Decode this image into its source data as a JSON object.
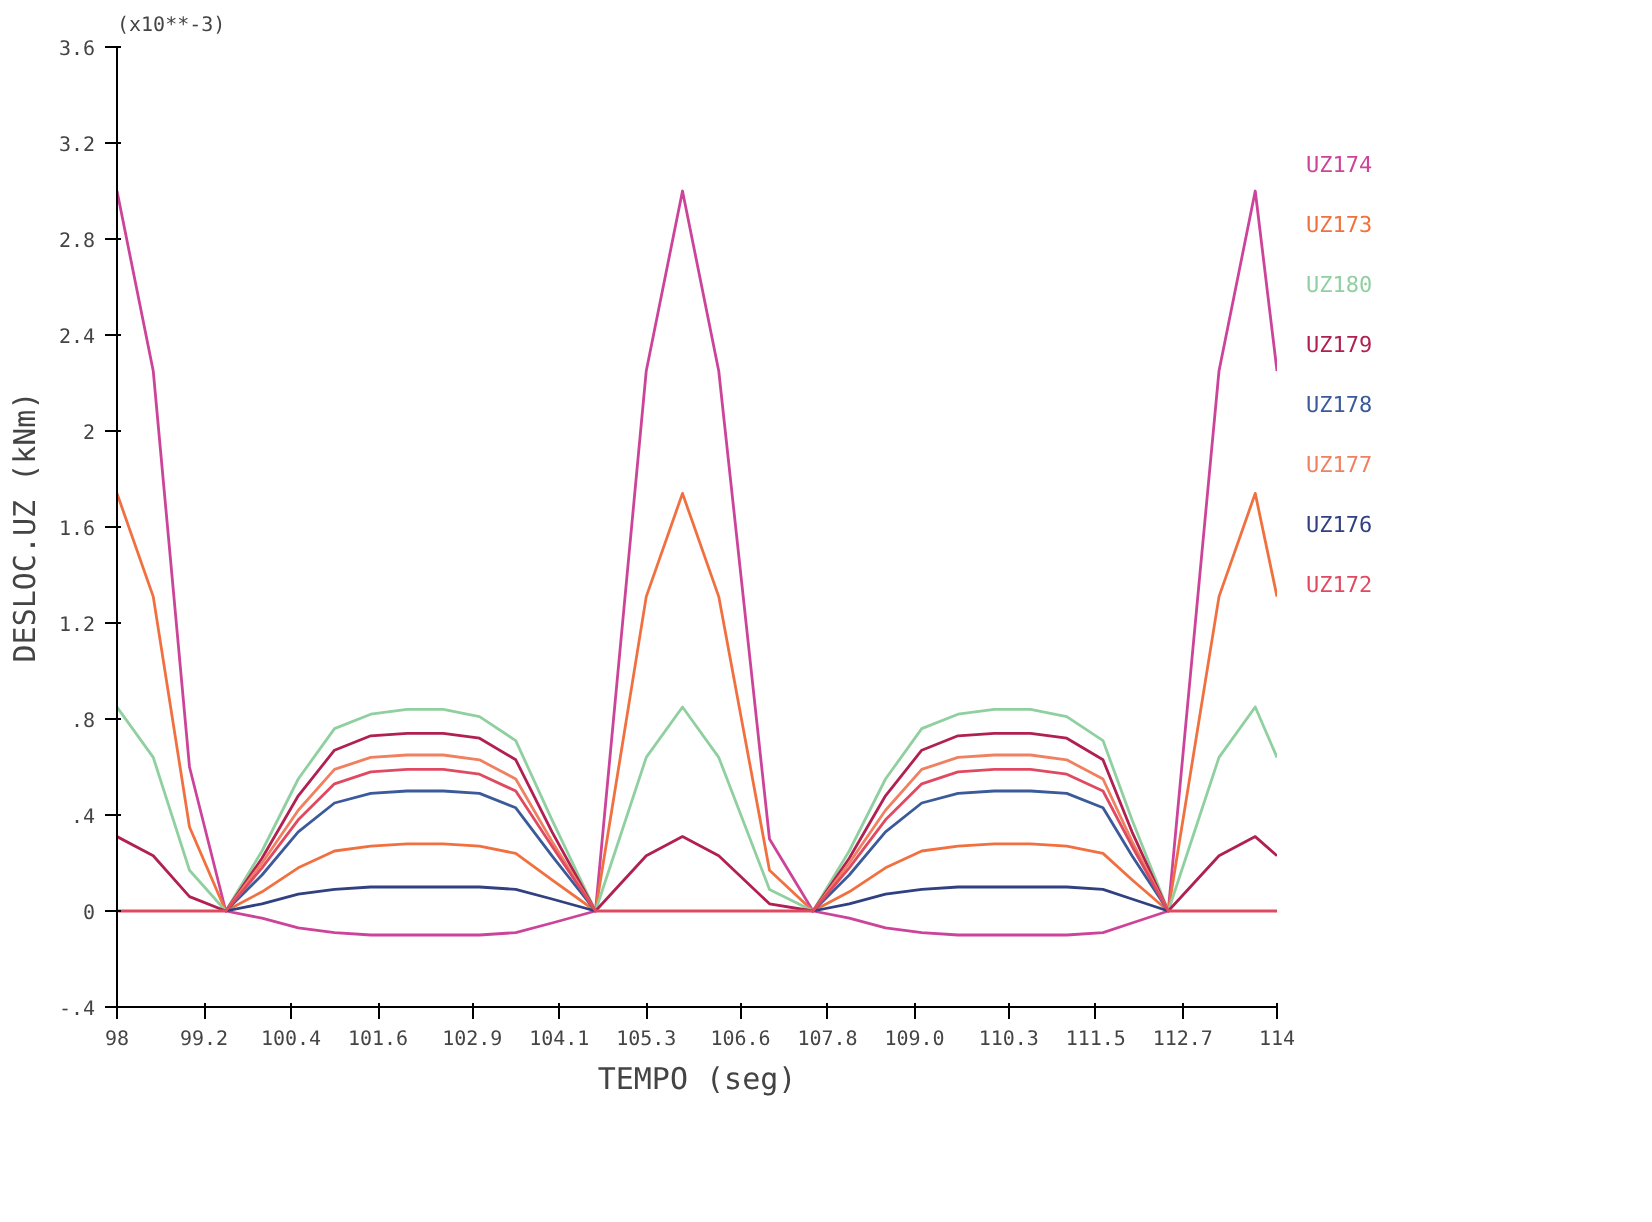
{
  "chart_data": {
    "type": "line",
    "xlabel": "TEMPO (seg)",
    "ylabel": "DESLOC.UZ (kNm)",
    "annotations": [
      "(x10**-3)"
    ],
    "x": [
      98,
      98.5,
      99,
      99.5,
      100,
      100.5,
      101,
      101.5,
      102,
      102.5,
      103,
      103.5,
      104,
      104.6,
      105.3,
      105.8,
      106.3,
      107,
      107.6,
      108.1,
      108.6,
      109.1,
      109.6,
      110.1,
      110.6,
      111.1,
      111.6,
      112,
      112.5,
      113.2,
      113.7,
      114
    ],
    "xlim": [
      98,
      114
    ],
    "xticks": [
      98,
      99.2,
      100.4,
      101.6,
      102.9,
      104.1,
      105.3,
      106.6,
      107.8,
      {
        "value": 109,
        "label": "109.0"
      },
      110.3,
      111.5,
      112.7,
      114
    ],
    "ylim": [
      -0.4,
      3.6
    ],
    "yticks": [
      {
        "value": -0.4,
        "label": "-.4"
      },
      0,
      {
        "value": 0.4,
        "label": ".4"
      },
      {
        "value": 0.8,
        "label": ".8"
      },
      1.2,
      1.6,
      2,
      2.4,
      2.8,
      3.2,
      3.6
    ],
    "grid": false,
    "marker": "none",
    "line_style": "solid",
    "series": [
      {
        "name": "UZ174",
        "color": "#cc4499",
        "values": [
          3.0,
          2.25,
          0.6,
          0,
          -0.03,
          -0.07,
          -0.09,
          -0.1,
          -0.1,
          -0.1,
          -0.1,
          -0.09,
          -0.05,
          0,
          2.25,
          3.0,
          2.25,
          0.3,
          0,
          -0.03,
          -0.07,
          -0.09,
          -0.1,
          -0.1,
          -0.1,
          -0.1,
          -0.09,
          -0.05,
          0,
          2.25,
          3.0,
          2.25
        ]
      },
      {
        "name": "UZ173",
        "color": "#f07040",
        "values": [
          1.74,
          1.31,
          0.35,
          0,
          0.08,
          0.18,
          0.25,
          0.27,
          0.28,
          0.28,
          0.27,
          0.24,
          0.13,
          0,
          1.31,
          1.74,
          1.31,
          0.17,
          0,
          0.08,
          0.18,
          0.25,
          0.27,
          0.28,
          0.28,
          0.27,
          0.24,
          0.13,
          0,
          1.31,
          1.74,
          1.31
        ]
      },
      {
        "name": "UZ180",
        "color": "#90d0a0",
        "values": [
          0.85,
          0.64,
          0.17,
          0,
          0.25,
          0.55,
          0.76,
          0.82,
          0.84,
          0.84,
          0.81,
          0.71,
          0.38,
          0,
          0.64,
          0.85,
          0.64,
          0.09,
          0,
          0.25,
          0.55,
          0.76,
          0.82,
          0.84,
          0.84,
          0.81,
          0.71,
          0.38,
          0,
          0.64,
          0.85,
          0.64
        ]
      },
      {
        "name": "UZ179",
        "color": "#b02050",
        "values": [
          0.31,
          0.23,
          0.06,
          0,
          0.22,
          0.48,
          0.67,
          0.73,
          0.74,
          0.74,
          0.72,
          0.63,
          0.33,
          0,
          0.23,
          0.31,
          0.23,
          0.03,
          0,
          0.22,
          0.48,
          0.67,
          0.73,
          0.74,
          0.74,
          0.72,
          0.63,
          0.33,
          0,
          0.23,
          0.31,
          0.23
        ]
      },
      {
        "name": "UZ178",
        "color": "#3a5a9a",
        "values": [
          null,
          null,
          null,
          0,
          0.15,
          0.33,
          0.45,
          0.49,
          0.5,
          0.5,
          0.49,
          0.43,
          0.23,
          0,
          null,
          null,
          null,
          null,
          0,
          0.15,
          0.33,
          0.45,
          0.49,
          0.5,
          0.5,
          0.49,
          0.43,
          0.23,
          0,
          null,
          null,
          null
        ]
      },
      {
        "name": "UZ177",
        "color": "#f08060",
        "values": [
          null,
          null,
          null,
          0,
          0.2,
          0.42,
          0.59,
          0.64,
          0.65,
          0.65,
          0.63,
          0.55,
          0.29,
          0,
          null,
          null,
          null,
          null,
          0,
          0.2,
          0.42,
          0.59,
          0.64,
          0.65,
          0.65,
          0.63,
          0.55,
          0.29,
          0,
          null,
          null,
          null
        ]
      },
      {
        "name": "UZ176",
        "color": "#304080",
        "values": [
          null,
          null,
          null,
          0,
          0.03,
          0.07,
          0.09,
          0.1,
          0.1,
          0.1,
          0.1,
          0.09,
          0.05,
          0,
          null,
          null,
          null,
          null,
          0,
          0.03,
          0.07,
          0.09,
          0.1,
          0.1,
          0.1,
          0.1,
          0.09,
          0.05,
          0,
          null,
          null,
          null
        ]
      },
      {
        "name": "UZ172",
        "color": "#e04a60",
        "values": [
          0,
          0,
          0,
          0,
          0.18,
          0.38,
          0.53,
          0.58,
          0.59,
          0.59,
          0.57,
          0.5,
          0.27,
          0,
          0,
          0,
          0,
          0,
          0,
          0.18,
          0.38,
          0.53,
          0.58,
          0.59,
          0.59,
          0.57,
          0.5,
          0.27,
          0,
          0,
          0,
          0
        ]
      }
    ]
  }
}
